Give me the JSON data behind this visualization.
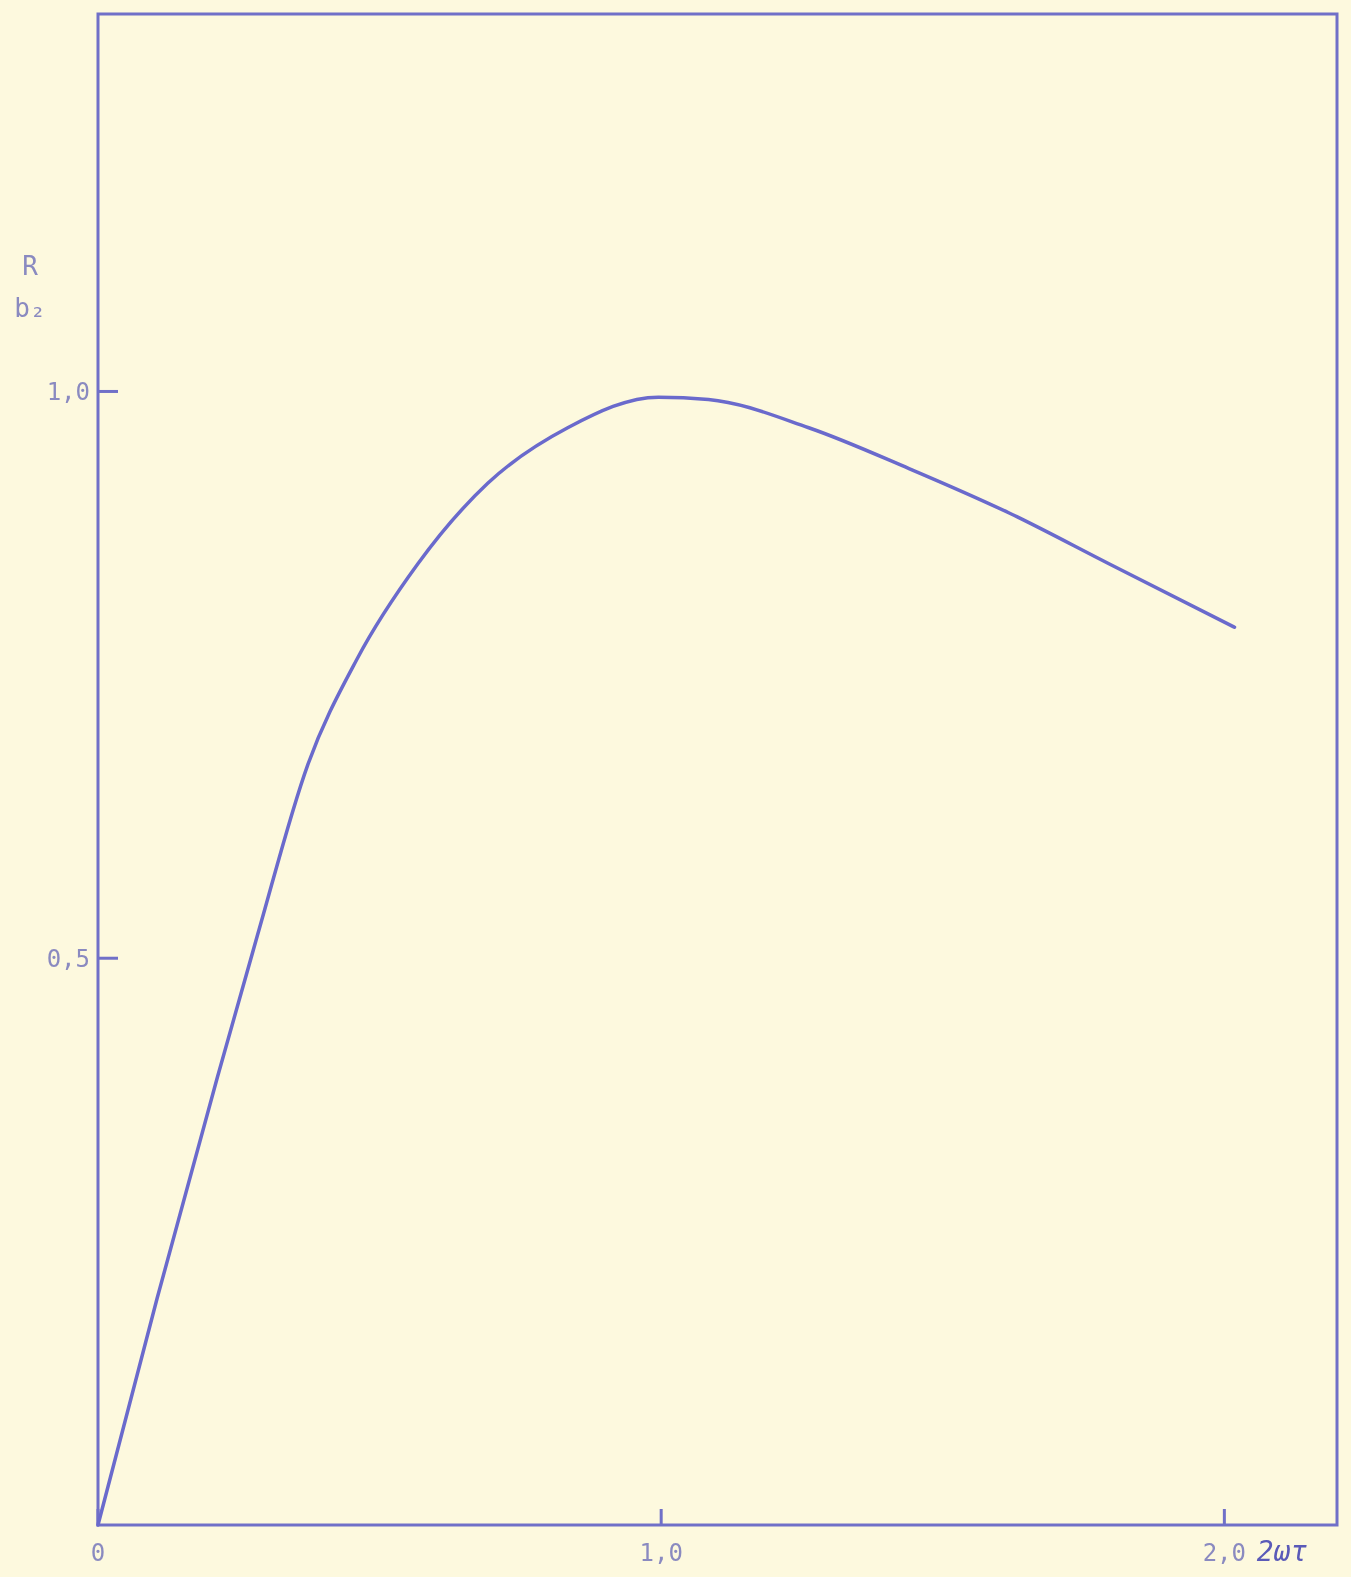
{
  "chart_data": {
    "type": "line",
    "xlabel": "2ωτ",
    "ylabel": "R\nb₂",
    "xlim": [
      0,
      2.2
    ],
    "ylim": [
      0,
      1.333
    ],
    "xticks": [
      {
        "value": 0,
        "label": "0"
      },
      {
        "value": 1,
        "label": "1,0"
      },
      {
        "value": 2,
        "label": "2,0"
      }
    ],
    "yticks": [
      {
        "value": 0.5,
        "label": "0,5"
      },
      {
        "value": 1,
        "label": "1,0"
      }
    ],
    "grid": false,
    "marker": "none",
    "line_style": "solid",
    "series": [
      {
        "color": "#6a6acc",
        "x": [
          0,
          0.105,
          0.212,
          0.283,
          0.372,
          0.46,
          0.568,
          0.692,
          0.834,
          0.995,
          1.084,
          1.262,
          1.44,
          1.617,
          1.795,
          2.018
        ],
        "values": [
          0,
          0.2,
          0.395,
          0.52,
          0.67,
          0.764,
          0.848,
          0.919,
          0.968,
          0.995,
          0.993,
          0.968,
          0.932,
          0.893,
          0.848,
          0.792
        ]
      }
    ]
  }
}
